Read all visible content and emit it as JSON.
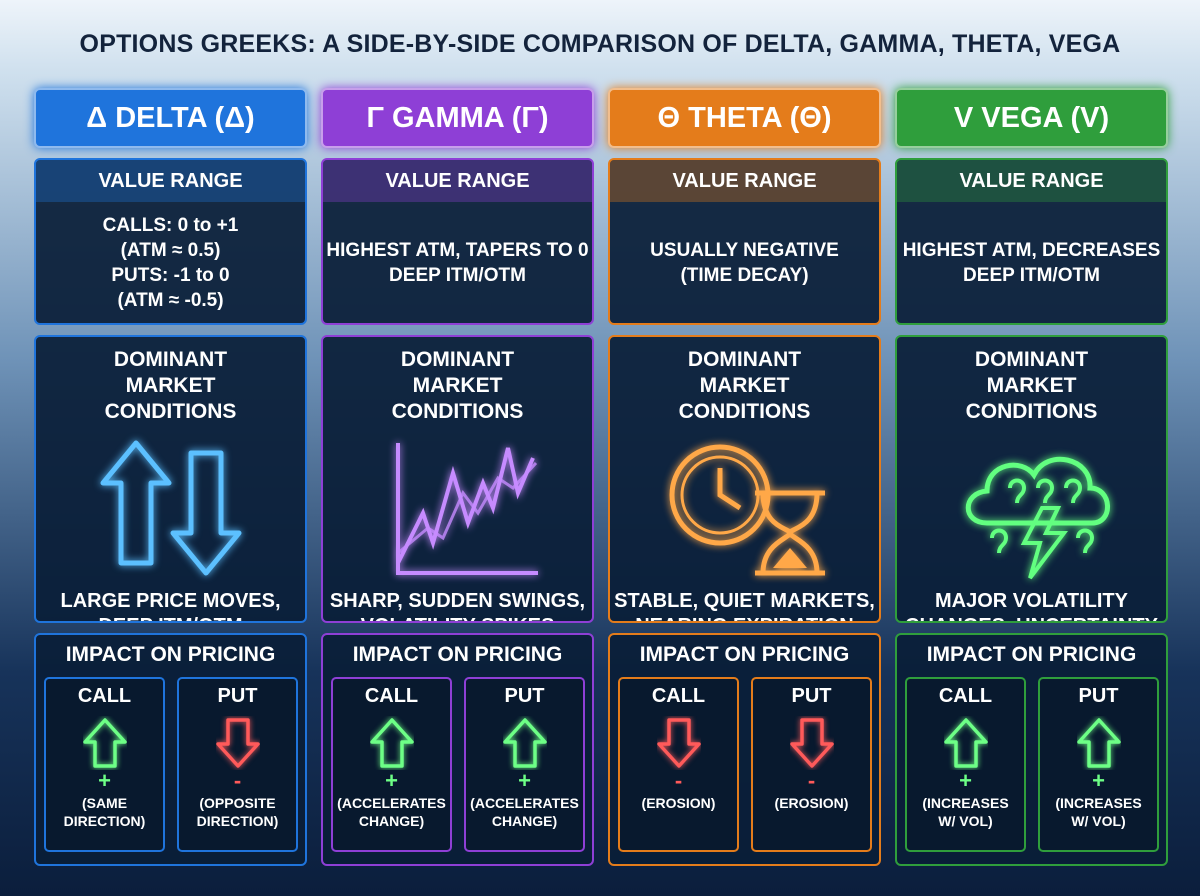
{
  "title": "OPTIONS GREEKS: A SIDE-BY-SIDE COMPARISON OF DELTA, GAMMA, THETA, VEGA",
  "columns": [
    {
      "header": "Δ DELTA (Δ)",
      "accent": "#1f74dc",
      "icon_color": "#5cc0ff",
      "value_range": {
        "label": "VALUE RANGE",
        "lines": [
          "CALLS: 0 to +1",
          "(ATM ≈ 0.5)",
          "PUTS: -1 to 0",
          "(ATM ≈ -0.5)"
        ]
      },
      "conditions": {
        "label": "DOMINANT MARKET CONDITIONS",
        "lines": [
          "LARGE PRICE MOVES,",
          "DEEP ITM/OTM"
        ]
      },
      "impact": {
        "label": "IMPACT ON PRICING",
        "call": {
          "label": "CALL",
          "direction": "up",
          "sign": "+",
          "note": [
            "(SAME",
            "DIRECTION)"
          ]
        },
        "put": {
          "label": "PUT",
          "direction": "down",
          "sign": "-",
          "note": [
            "(OPPOSITE",
            "DIRECTION)"
          ]
        }
      }
    },
    {
      "header": "Γ GAMMA (Γ)",
      "accent": "#8e3fd6",
      "icon_color": "#c68bff",
      "value_range": {
        "label": "VALUE RANGE",
        "lines": [
          "HIGHEST ATM, TAPERS TO 0",
          "DEEP ITM/OTM"
        ]
      },
      "conditions": {
        "label": "DOMINANT MARKET CONDITIONS",
        "lines": [
          "SHARP, SUDDEN SWINGS,",
          "VOLATILITY SPIKES"
        ]
      },
      "impact": {
        "label": "IMPACT ON PRICING",
        "call": {
          "label": "CALL",
          "direction": "up",
          "sign": "+",
          "note": [
            "(ACCELERATES",
            "CHANGE)"
          ]
        },
        "put": {
          "label": "PUT",
          "direction": "up",
          "sign": "+",
          "note": [
            "(ACCELERATES",
            "CHANGE)"
          ]
        }
      }
    },
    {
      "header": "Θ THETA (Θ)",
      "accent": "#e47c1b",
      "icon_color": "#ffa848",
      "value_range": {
        "label": "VALUE RANGE",
        "lines": [
          "USUALLY NEGATIVE",
          "(TIME DECAY)"
        ]
      },
      "conditions": {
        "label": "DOMINANT MARKET CONDITIONS",
        "lines": [
          "STABLE, QUIET MARKETS,",
          "NEARING EXPIRATION"
        ]
      },
      "impact": {
        "label": "IMPACT ON PRICING",
        "call": {
          "label": "CALL",
          "direction": "down",
          "sign": "-",
          "note": [
            "(EROSION)"
          ]
        },
        "put": {
          "label": "PUT",
          "direction": "down",
          "sign": "-",
          "note": [
            "(EROSION)"
          ]
        }
      }
    },
    {
      "header": "V VEGA (V)",
      "accent": "#2f9e3c",
      "icon_color": "#62ff80",
      "value_range": {
        "label": "VALUE RANGE",
        "lines": [
          "HIGHEST ATM, DECREASES",
          "DEEP ITM/OTM"
        ]
      },
      "conditions": {
        "label": "DOMINANT MARKET CONDITIONS",
        "lines": [
          "MAJOR VOLATILITY",
          "CHANGES, UNCERTAINTY"
        ]
      },
      "impact": {
        "label": "IMPACT ON PRICING",
        "call": {
          "label": "CALL",
          "direction": "up",
          "sign": "+",
          "note": [
            "(INCREASES",
            "W/ VOL)"
          ]
        },
        "put": {
          "label": "PUT",
          "direction": "up",
          "sign": "+",
          "note": [
            "(INCREASES",
            "W/ VOL)"
          ]
        }
      }
    }
  ]
}
